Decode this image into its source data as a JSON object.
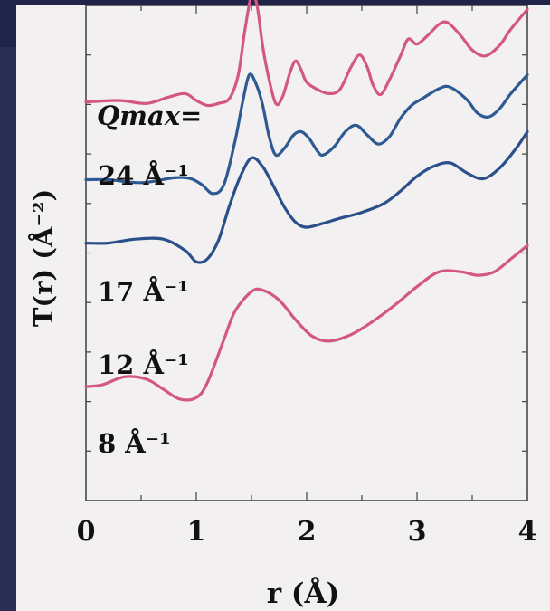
{
  "chart_data": {
    "type": "line",
    "xlabel": "r (Å)",
    "ylabel": "T(r) (Å⁻²)",
    "legend_title": "Qmax=",
    "xlim": [
      0,
      4
    ],
    "ylim": [
      0,
      10
    ],
    "grid": false,
    "x_ticks": [
      0,
      1,
      2,
      3,
      4
    ],
    "x_tick_labels": [
      "0",
      "1",
      "2",
      "3",
      "4"
    ],
    "series": [
      {
        "name": "24 Å⁻¹",
        "color": "#d4577f",
        "points": [
          [
            0,
            8.05
          ],
          [
            0.3,
            8.08
          ],
          [
            0.55,
            8.02
          ],
          [
            0.75,
            8.15
          ],
          [
            0.9,
            8.22
          ],
          [
            1.0,
            8.08
          ],
          [
            1.1,
            7.98
          ],
          [
            1.2,
            8.02
          ],
          [
            1.3,
            8.12
          ],
          [
            1.38,
            8.6
          ],
          [
            1.44,
            9.5
          ],
          [
            1.5,
            10.2
          ],
          [
            1.55,
            10.0
          ],
          [
            1.6,
            9.2
          ],
          [
            1.65,
            8.6
          ],
          [
            1.72,
            8.02
          ],
          [
            1.78,
            8.15
          ],
          [
            1.85,
            8.65
          ],
          [
            1.9,
            8.88
          ],
          [
            1.95,
            8.7
          ],
          [
            2.0,
            8.45
          ],
          [
            2.1,
            8.3
          ],
          [
            2.2,
            8.22
          ],
          [
            2.3,
            8.3
          ],
          [
            2.4,
            8.75
          ],
          [
            2.48,
            9.0
          ],
          [
            2.55,
            8.75
          ],
          [
            2.6,
            8.4
          ],
          [
            2.67,
            8.2
          ],
          [
            2.75,
            8.5
          ],
          [
            2.85,
            8.98
          ],
          [
            2.92,
            9.32
          ],
          [
            3.0,
            9.22
          ],
          [
            3.1,
            9.4
          ],
          [
            3.2,
            9.62
          ],
          [
            3.28,
            9.65
          ],
          [
            3.4,
            9.38
          ],
          [
            3.5,
            9.1
          ],
          [
            3.62,
            8.98
          ],
          [
            3.75,
            9.2
          ],
          [
            3.85,
            9.52
          ],
          [
            4.0,
            9.92
          ]
        ]
      },
      {
        "name": "17 Å⁻¹",
        "color": "#2e5a93",
        "points": [
          [
            0,
            6.48
          ],
          [
            0.2,
            6.48
          ],
          [
            0.5,
            6.42
          ],
          [
            0.8,
            6.52
          ],
          [
            0.95,
            6.5
          ],
          [
            1.05,
            6.38
          ],
          [
            1.15,
            6.2
          ],
          [
            1.25,
            6.38
          ],
          [
            1.35,
            7.25
          ],
          [
            1.42,
            8.05
          ],
          [
            1.48,
            8.6
          ],
          [
            1.54,
            8.42
          ],
          [
            1.6,
            8.0
          ],
          [
            1.66,
            7.35
          ],
          [
            1.72,
            6.98
          ],
          [
            1.8,
            7.12
          ],
          [
            1.88,
            7.38
          ],
          [
            1.95,
            7.45
          ],
          [
            2.02,
            7.32
          ],
          [
            2.1,
            7.05
          ],
          [
            2.15,
            6.98
          ],
          [
            2.25,
            7.15
          ],
          [
            2.35,
            7.45
          ],
          [
            2.45,
            7.58
          ],
          [
            2.55,
            7.38
          ],
          [
            2.65,
            7.2
          ],
          [
            2.75,
            7.35
          ],
          [
            2.85,
            7.72
          ],
          [
            2.95,
            7.98
          ],
          [
            3.05,
            8.12
          ],
          [
            3.2,
            8.32
          ],
          [
            3.3,
            8.35
          ],
          [
            3.45,
            8.1
          ],
          [
            3.55,
            7.82
          ],
          [
            3.65,
            7.75
          ],
          [
            3.75,
            7.92
          ],
          [
            3.85,
            8.22
          ],
          [
            4.0,
            8.6
          ]
        ]
      },
      {
        "name": "12 Å⁻¹",
        "color": "#2a4f8a",
        "points": [
          [
            0,
            5.2
          ],
          [
            0.2,
            5.2
          ],
          [
            0.45,
            5.28
          ],
          [
            0.7,
            5.28
          ],
          [
            0.9,
            5.05
          ],
          [
            1.0,
            4.82
          ],
          [
            1.1,
            4.88
          ],
          [
            1.2,
            5.25
          ],
          [
            1.3,
            5.95
          ],
          [
            1.4,
            6.55
          ],
          [
            1.5,
            6.92
          ],
          [
            1.6,
            6.75
          ],
          [
            1.7,
            6.35
          ],
          [
            1.8,
            5.92
          ],
          [
            1.9,
            5.62
          ],
          [
            2.0,
            5.52
          ],
          [
            2.15,
            5.6
          ],
          [
            2.3,
            5.7
          ],
          [
            2.5,
            5.82
          ],
          [
            2.7,
            6.0
          ],
          [
            2.85,
            6.25
          ],
          [
            3.0,
            6.55
          ],
          [
            3.15,
            6.75
          ],
          [
            3.3,
            6.82
          ],
          [
            3.45,
            6.62
          ],
          [
            3.6,
            6.5
          ],
          [
            3.75,
            6.72
          ],
          [
            3.9,
            7.12
          ],
          [
            4.0,
            7.45
          ]
        ]
      },
      {
        "name": "8 Å⁻¹",
        "color": "#d4577f",
        "points": [
          [
            0,
            2.3
          ],
          [
            0.15,
            2.34
          ],
          [
            0.35,
            2.5
          ],
          [
            0.55,
            2.45
          ],
          [
            0.7,
            2.25
          ],
          [
            0.85,
            2.05
          ],
          [
            1.0,
            2.08
          ],
          [
            1.1,
            2.38
          ],
          [
            1.25,
            3.25
          ],
          [
            1.35,
            3.82
          ],
          [
            1.5,
            4.22
          ],
          [
            1.6,
            4.25
          ],
          [
            1.75,
            4.05
          ],
          [
            1.9,
            3.65
          ],
          [
            2.05,
            3.32
          ],
          [
            2.2,
            3.22
          ],
          [
            2.4,
            3.35
          ],
          [
            2.6,
            3.62
          ],
          [
            2.8,
            3.95
          ],
          [
            3.0,
            4.32
          ],
          [
            3.2,
            4.62
          ],
          [
            3.4,
            4.62
          ],
          [
            3.55,
            4.55
          ],
          [
            3.7,
            4.62
          ],
          [
            3.85,
            4.88
          ],
          [
            4.0,
            5.15
          ]
        ]
      }
    ]
  }
}
